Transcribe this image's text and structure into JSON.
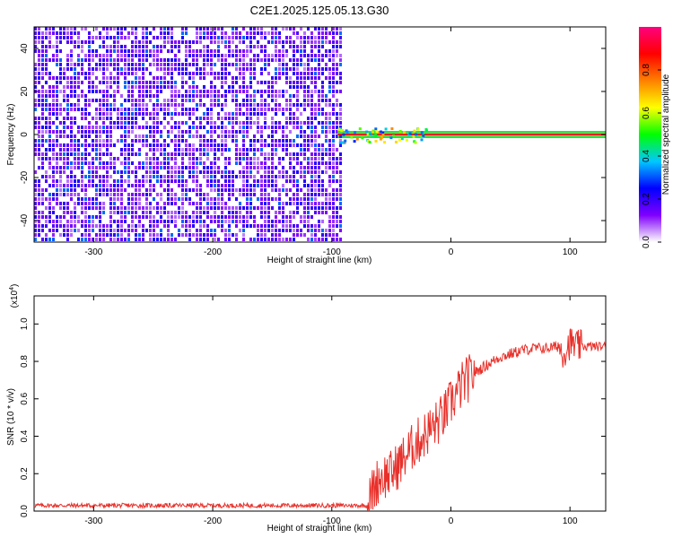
{
  "figure": {
    "title": "C2E1.2025.125.05.13.G30"
  },
  "chart_data": [
    {
      "type": "heatmap",
      "xlabel": "Height of straight line (km)",
      "ylabel": "Frequency (Hz)",
      "xlim": [
        -350,
        130
      ],
      "ylim": [
        -50,
        50
      ],
      "xticks": [
        -300,
        -200,
        -100,
        0,
        100
      ],
      "yticks": [
        -40,
        -20,
        0,
        20,
        40
      ],
      "colorbar": {
        "label": "Normalized spectral amplitude",
        "range": [
          0,
          1
        ],
        "ticks": [
          0.0,
          0.2,
          0.4,
          0.6,
          0.8
        ],
        "ticklabels": [
          "0.0",
          "0.2",
          "0.4",
          "0.6",
          "0.8"
        ],
        "colors": [
          "#ffffff",
          "#8000ff",
          "#0000ff",
          "#00c8ff",
          "#00ff00",
          "#ffff00",
          "#ff8000",
          "#ff0000",
          "#ff0080"
        ]
      },
      "regions": [
        {
          "description": "broadband noise",
          "x_range": [
            -350,
            -92
          ],
          "y_range": [
            -50,
            50
          ],
          "amplitude": 0.15
        },
        {
          "description": "narrowband signal near 0 Hz",
          "x_range": [
            -95,
            130
          ],
          "y_center": 0,
          "amplitude": 0.9
        }
      ]
    },
    {
      "type": "line",
      "xlabel": "Height of straight line (km)",
      "ylabel": "SNR (10 * v/v)",
      "y_multiplier": "(x10",
      "y_multiplier_exp": "4",
      "y_multiplier_close": ")",
      "xlim": [
        -350,
        130
      ],
      "ylim": [
        0,
        1.15
      ],
      "xticks": [
        -300,
        -200,
        -100,
        0,
        100
      ],
      "yticks": [
        0.0,
        0.2,
        0.4,
        0.6,
        0.8,
        1.0
      ],
      "yticklabels": [
        "0.0",
        "0.2",
        "0.4",
        "0.6",
        "0.8",
        "1.0"
      ],
      "color": "#e8302a",
      "x": [
        -350,
        -300,
        -250,
        -200,
        -150,
        -100,
        -70,
        -65,
        -60,
        -50,
        -40,
        -30,
        -20,
        -10,
        -5,
        0,
        10,
        20,
        30,
        40,
        50,
        60,
        70,
        80,
        90,
        95,
        100,
        105,
        110,
        120,
        130
      ],
      "y": [
        0.03,
        0.03,
        0.03,
        0.03,
        0.03,
        0.03,
        0.03,
        0.12,
        0.18,
        0.2,
        0.28,
        0.36,
        0.42,
        0.48,
        0.52,
        0.58,
        0.68,
        0.74,
        0.78,
        0.82,
        0.84,
        0.86,
        0.87,
        0.87,
        0.88,
        0.85,
        0.9,
        0.88,
        0.88,
        0.88,
        0.88
      ]
    }
  ]
}
